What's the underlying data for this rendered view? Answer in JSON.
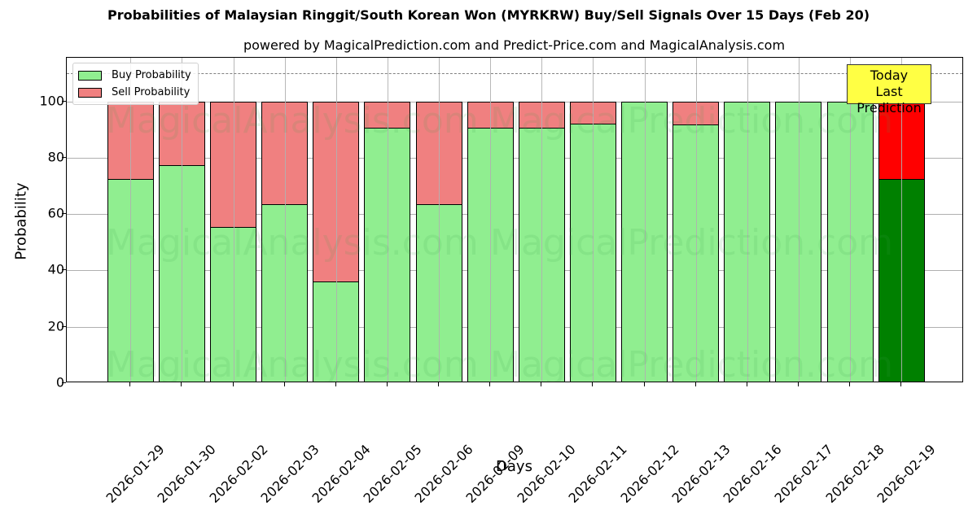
{
  "header": {
    "title": "Probabilities of Malaysian Ringgit/South Korean Won (MYRKRW) Buy/Sell Signals Over 15 Days (Feb 20)",
    "subtitle": "powered by MagicalPrediction.com and Predict-Price.com and MagicalAnalysis.com"
  },
  "legend": {
    "buy_label": "Buy Probability",
    "sell_label": "Sell Probability"
  },
  "annotation": {
    "line1": "Today",
    "line2": "Last Prediction"
  },
  "watermarks": [
    "MagicalAnalysis.com",
    "MagicalPrediction.com"
  ],
  "colors": {
    "buy": "#90ee90",
    "sell": "#f08080",
    "today_buy": "#008000",
    "today_sell": "#ff0000",
    "annotation_bg": "#ffff44",
    "reference_line": "#808080"
  },
  "chart_data": {
    "type": "bar",
    "stacked": true,
    "title": "Probabilities of Malaysian Ringgit/South Korean Won (MYRKRW) Buy/Sell Signals Over 15 Days (Feb 20)",
    "subtitle": "powered by MagicalPrediction.com and Predict-Price.com and MagicalAnalysis.com",
    "xlabel": "Days",
    "ylabel": "Probability",
    "ylim": [
      0,
      115.5
    ],
    "yticks": [
      0,
      20,
      40,
      60,
      80,
      100
    ],
    "grid": true,
    "legend_position": "upper left",
    "reference_line": {
      "y": 110,
      "style": "dashed"
    },
    "categories": [
      "2026-01-29",
      "2026-01-30",
      "2026-02-02",
      "2026-02-03",
      "2026-02-04",
      "2026-02-05",
      "2026-02-06",
      "2026-02-09",
      "2026-02-10",
      "2026-02-11",
      "2026-02-12",
      "2026-02-13",
      "2026-02-16",
      "2026-02-17",
      "2026-02-18",
      "2026-02-19"
    ],
    "series": [
      {
        "name": "Buy Probability",
        "values": [
          72.4,
          77.3,
          55.3,
          63.4,
          36.2,
          90.7,
          63.5,
          90.7,
          90.7,
          92.1,
          100,
          91.8,
          100,
          100,
          100,
          72.5
        ]
      },
      {
        "name": "Sell Probability",
        "values": [
          27.6,
          22.7,
          44.7,
          36.6,
          63.8,
          9.3,
          36.5,
          9.3,
          9.3,
          7.9,
          0,
          8.2,
          0,
          0,
          0,
          27.5
        ]
      }
    ],
    "highlight": {
      "index": 15,
      "label": "Today\nLast Prediction"
    }
  }
}
